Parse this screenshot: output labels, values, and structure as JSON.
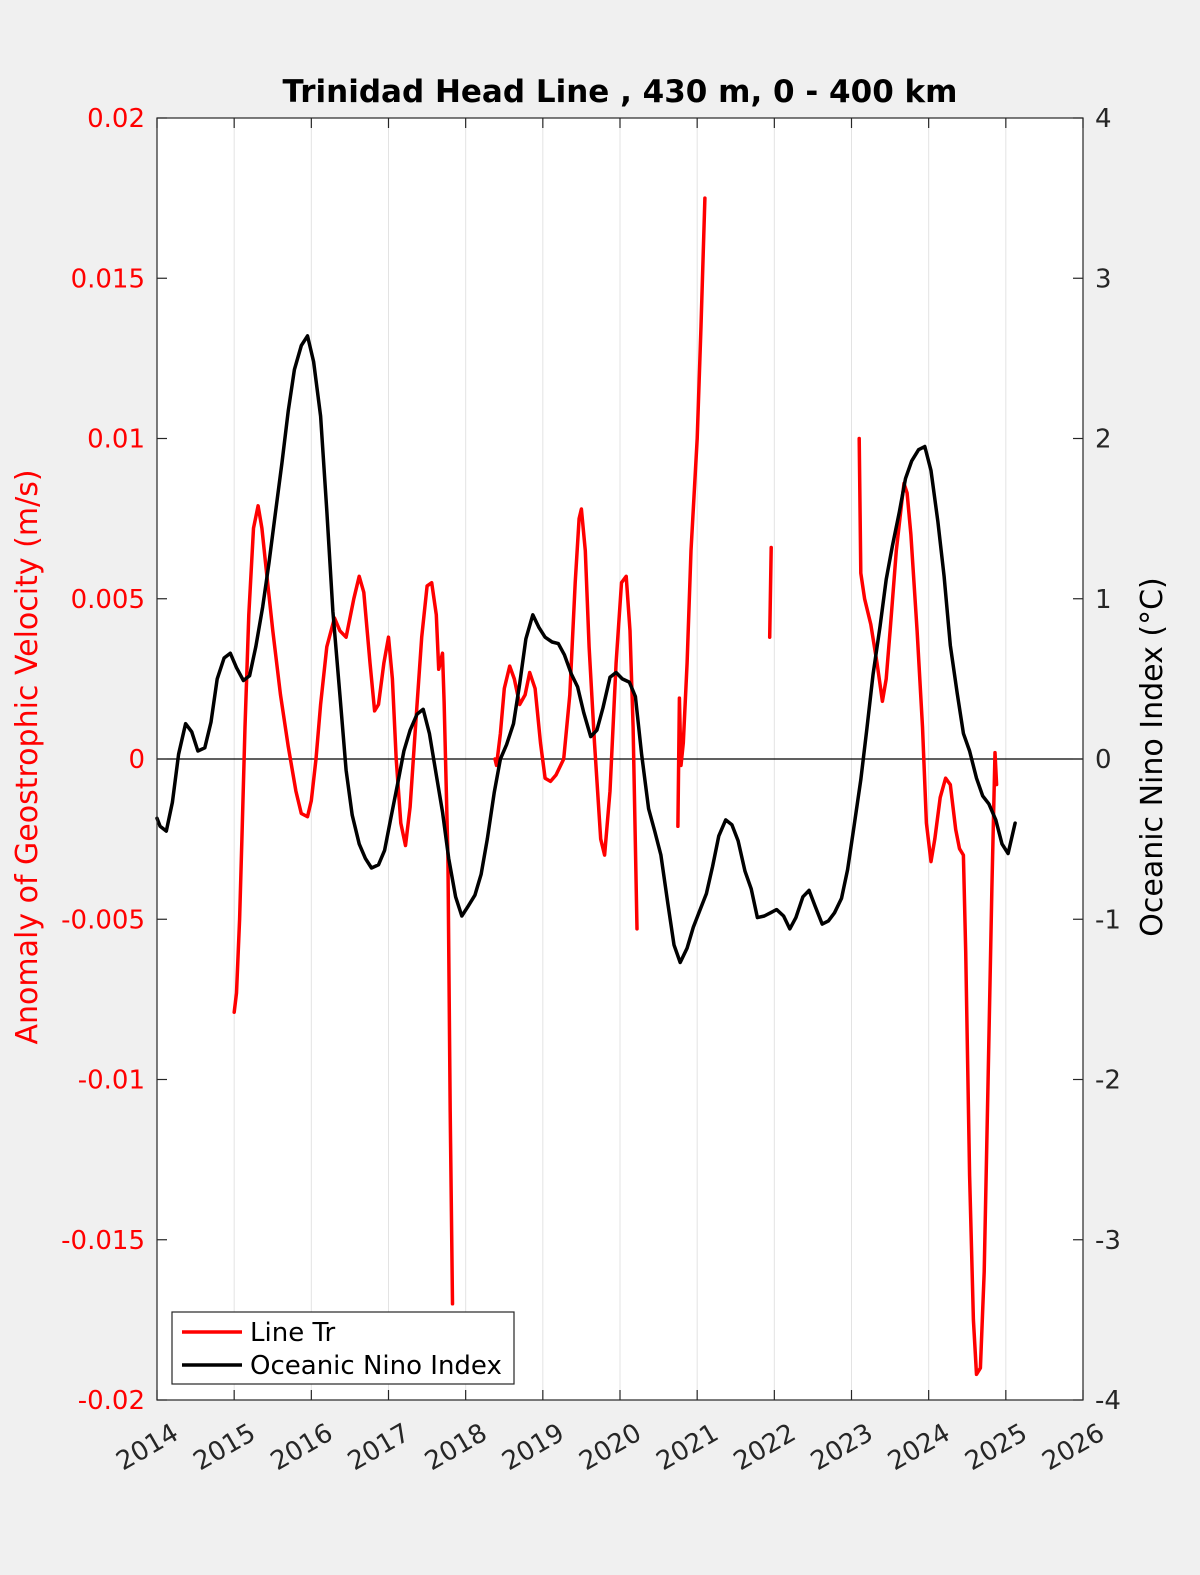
{
  "chart_data": {
    "type": "line",
    "title": "Trinidad Head Line , 430 m, 0 - 400 km",
    "xlabel": "",
    "ylabel_left": "Anomaly of Geostrophic Velocity (m/s)",
    "ylabel_right": "Oceanic Nino Index (°C)",
    "xlim": [
      2014,
      2026
    ],
    "ylim_left": [
      -0.02,
      0.02
    ],
    "ylim_right": [
      -4,
      4
    ],
    "x_ticks": [
      "2014",
      "2015",
      "2016",
      "2017",
      "2018",
      "2019",
      "2020",
      "2021",
      "2022",
      "2023",
      "2024",
      "2025",
      "2026"
    ],
    "y_ticks_left": [
      "-0.02",
      "-0.015",
      "-0.01",
      "-0.005",
      "0",
      "0.005",
      "0.01",
      "0.015",
      "0.02"
    ],
    "y_ticks_right": [
      "-4",
      "-3",
      "-2",
      "-1",
      "0",
      "1",
      "2",
      "3",
      "4"
    ],
    "grid": "vertical",
    "zero_line": true,
    "legend_position": "bottom-left",
    "series": [
      {
        "name": "Line Tr",
        "axis": "left",
        "color": "#ff0000",
        "segments": [
          [
            [
              2015.0,
              -0.0079
            ],
            [
              2015.03,
              -0.0073
            ],
            [
              2015.07,
              -0.005
            ],
            [
              2015.1,
              -0.0025
            ],
            [
              2015.14,
              0.001
            ],
            [
              2015.19,
              0.0045
            ],
            [
              2015.25,
              0.0072
            ],
            [
              2015.31,
              0.0079
            ],
            [
              2015.36,
              0.0072
            ],
            [
              2015.42,
              0.0058
            ],
            [
              2015.5,
              0.004
            ],
            [
              2015.6,
              0.002
            ],
            [
              2015.7,
              0.0004
            ],
            [
              2015.8,
              -0.001
            ],
            [
              2015.87,
              -0.0017
            ],
            [
              2015.95,
              -0.0018
            ],
            [
              2016.0,
              -0.0013
            ],
            [
              2016.06,
              0.0
            ],
            [
              2016.12,
              0.0017
            ],
            [
              2016.2,
              0.0035
            ],
            [
              2016.3,
              0.0044
            ],
            [
              2016.37,
              0.004
            ],
            [
              2016.45,
              0.0038
            ],
            [
              2016.55,
              0.005
            ],
            [
              2016.62,
              0.0057
            ],
            [
              2016.68,
              0.0052
            ],
            [
              2016.76,
              0.003
            ],
            [
              2016.82,
              0.0015
            ],
            [
              2016.87,
              0.0017
            ],
            [
              2016.94,
              0.003
            ],
            [
              2017.0,
              0.0038
            ],
            [
              2017.05,
              0.0025
            ],
            [
              2017.1,
              0.0
            ],
            [
              2017.16,
              -0.002
            ],
            [
              2017.22,
              -0.0027
            ],
            [
              2017.28,
              -0.0015
            ],
            [
              2017.35,
              0.001
            ],
            [
              2017.43,
              0.0038
            ],
            [
              2017.5,
              0.0054
            ],
            [
              2017.56,
              0.0055
            ],
            [
              2017.62,
              0.0045
            ],
            [
              2017.65,
              0.0028
            ],
            [
              2017.7,
              0.0033
            ],
            [
              2017.72,
              0.0018
            ],
            [
              2017.77,
              -0.003
            ],
            [
              2017.8,
              -0.011
            ],
            [
              2017.83,
              -0.017
            ]
          ],
          [
            [
              2018.38,
              0.0
            ],
            [
              2018.4,
              -0.0002
            ],
            [
              2018.45,
              0.0008
            ],
            [
              2018.5,
              0.0022
            ],
            [
              2018.57,
              0.0029
            ],
            [
              2018.63,
              0.0025
            ],
            [
              2018.7,
              0.0017
            ],
            [
              2018.77,
              0.002
            ],
            [
              2018.83,
              0.0027
            ],
            [
              2018.9,
              0.0022
            ],
            [
              2018.97,
              0.0005
            ],
            [
              2019.03,
              -0.0006
            ],
            [
              2019.1,
              -0.0007
            ],
            [
              2019.17,
              -0.0005
            ],
            [
              2019.27,
              0.0
            ],
            [
              2019.35,
              0.002
            ],
            [
              2019.42,
              0.0055
            ],
            [
              2019.47,
              0.0075
            ],
            [
              2019.5,
              0.0078
            ],
            [
              2019.55,
              0.0065
            ],
            [
              2019.6,
              0.0035
            ],
            [
              2019.67,
              0.0005
            ],
            [
              2019.75,
              -0.0025
            ],
            [
              2019.8,
              -0.003
            ],
            [
              2019.87,
              -0.001
            ],
            [
              2019.95,
              0.003
            ],
            [
              2020.02,
              0.0055
            ],
            [
              2020.08,
              0.0057
            ],
            [
              2020.13,
              0.004
            ],
            [
              2020.17,
              0.001
            ],
            [
              2020.22,
              -0.0053
            ]
          ],
          [
            [
              2020.75,
              -0.0021
            ],
            [
              2020.77,
              0.0019
            ],
            [
              2020.79,
              -0.0002
            ],
            [
              2020.82,
              0.0005
            ],
            [
              2020.87,
              0.003
            ],
            [
              2020.92,
              0.0065
            ],
            [
              2021.0,
              0.01
            ],
            [
              2021.05,
              0.0135
            ],
            [
              2021.1,
              0.0175
            ]
          ],
          [
            [
              2021.94,
              0.0038
            ],
            [
              2021.96,
              0.0066
            ]
          ],
          [
            [
              2023.1,
              0.01
            ],
            [
              2023.12,
              0.0058
            ],
            [
              2023.17,
              0.005
            ],
            [
              2023.25,
              0.0042
            ],
            [
              2023.33,
              0.003
            ],
            [
              2023.4,
              0.0018
            ],
            [
              2023.45,
              0.0025
            ],
            [
              2023.5,
              0.004
            ],
            [
              2023.58,
              0.0065
            ],
            [
              2023.65,
              0.008
            ],
            [
              2023.68,
              0.0086
            ],
            [
              2023.72,
              0.0083
            ],
            [
              2023.77,
              0.007
            ],
            [
              2023.85,
              0.004
            ],
            [
              2023.92,
              0.001
            ],
            [
              2023.97,
              -0.002
            ],
            [
              2024.03,
              -0.0032
            ],
            [
              2024.08,
              -0.0025
            ],
            [
              2024.15,
              -0.0012
            ],
            [
              2024.22,
              -0.0006
            ],
            [
              2024.28,
              -0.0008
            ],
            [
              2024.35,
              -0.0022
            ],
            [
              2024.4,
              -0.0028
            ],
            [
              2024.45,
              -0.003
            ],
            [
              2024.48,
              -0.006
            ],
            [
              2024.53,
              -0.013
            ],
            [
              2024.58,
              -0.0175
            ],
            [
              2024.62,
              -0.0192
            ],
            [
              2024.67,
              -0.019
            ],
            [
              2024.72,
              -0.016
            ],
            [
              2024.77,
              -0.01
            ],
            [
              2024.82,
              -0.004
            ],
            [
              2024.86,
              0.0002
            ],
            [
              2024.88,
              -0.0008
            ]
          ]
        ]
      },
      {
        "name": "Oceanic Nino Index",
        "axis": "right",
        "color": "#000000",
        "segments": [
          [
            [
              2014.0,
              -0.37
            ],
            [
              2014.04,
              -0.42
            ],
            [
              2014.12,
              -0.45
            ],
            [
              2014.2,
              -0.27
            ],
            [
              2014.28,
              0.03
            ],
            [
              2014.37,
              0.22
            ],
            [
              2014.45,
              0.17
            ],
            [
              2014.53,
              0.05
            ],
            [
              2014.62,
              0.07
            ],
            [
              2014.7,
              0.23
            ],
            [
              2014.78,
              0.5
            ],
            [
              2014.87,
              0.63
            ],
            [
              2014.95,
              0.66
            ],
            [
              2015.03,
              0.57
            ],
            [
              2015.12,
              0.49
            ],
            [
              2015.2,
              0.52
            ],
            [
              2015.28,
              0.7
            ],
            [
              2015.37,
              0.95
            ],
            [
              2015.45,
              1.22
            ],
            [
              2015.53,
              1.52
            ],
            [
              2015.62,
              1.85
            ],
            [
              2015.7,
              2.17
            ],
            [
              2015.78,
              2.43
            ],
            [
              2015.87,
              2.58
            ],
            [
              2015.95,
              2.64
            ],
            [
              2016.03,
              2.48
            ],
            [
              2016.12,
              2.14
            ],
            [
              2016.2,
              1.55
            ],
            [
              2016.28,
              0.92
            ],
            [
              2016.37,
              0.4
            ],
            [
              2016.45,
              -0.07
            ],
            [
              2016.53,
              -0.35
            ],
            [
              2016.62,
              -0.53
            ],
            [
              2016.7,
              -0.62
            ],
            [
              2016.78,
              -0.68
            ],
            [
              2016.87,
              -0.66
            ],
            [
              2016.95,
              -0.57
            ],
            [
              2017.03,
              -0.37
            ],
            [
              2017.12,
              -0.15
            ],
            [
              2017.2,
              0.05
            ],
            [
              2017.28,
              0.18
            ],
            [
              2017.37,
              0.28
            ],
            [
              2017.45,
              0.31
            ],
            [
              2017.53,
              0.16
            ],
            [
              2017.62,
              -0.1
            ],
            [
              2017.7,
              -0.33
            ],
            [
              2017.78,
              -0.62
            ],
            [
              2017.87,
              -0.86
            ],
            [
              2017.95,
              -0.98
            ],
            [
              2018.03,
              -0.92
            ],
            [
              2018.12,
              -0.85
            ],
            [
              2018.2,
              -0.72
            ],
            [
              2018.28,
              -0.5
            ],
            [
              2018.37,
              -0.21
            ],
            [
              2018.45,
              0.0
            ],
            [
              2018.53,
              0.09
            ],
            [
              2018.62,
              0.22
            ],
            [
              2018.7,
              0.47
            ],
            [
              2018.78,
              0.75
            ],
            [
              2018.87,
              0.9
            ],
            [
              2018.95,
              0.82
            ],
            [
              2019.03,
              0.76
            ],
            [
              2019.12,
              0.73
            ],
            [
              2019.2,
              0.72
            ],
            [
              2019.28,
              0.65
            ],
            [
              2019.37,
              0.53
            ],
            [
              2019.45,
              0.45
            ],
            [
              2019.53,
              0.29
            ],
            [
              2019.62,
              0.14
            ],
            [
              2019.7,
              0.18
            ],
            [
              2019.78,
              0.32
            ],
            [
              2019.87,
              0.51
            ],
            [
              2019.95,
              0.54
            ],
            [
              2020.03,
              0.5
            ],
            [
              2020.12,
              0.48
            ],
            [
              2020.2,
              0.39
            ],
            [
              2020.28,
              0.03
            ],
            [
              2020.37,
              -0.31
            ],
            [
              2020.45,
              -0.45
            ],
            [
              2020.53,
              -0.6
            ],
            [
              2020.62,
              -0.9
            ],
            [
              2020.7,
              -1.16
            ],
            [
              2020.78,
              -1.27
            ],
            [
              2020.87,
              -1.18
            ],
            [
              2020.95,
              -1.05
            ],
            [
              2021.03,
              -0.95
            ],
            [
              2021.12,
              -0.84
            ],
            [
              2021.2,
              -0.67
            ],
            [
              2021.28,
              -0.48
            ],
            [
              2021.37,
              -0.38
            ],
            [
              2021.45,
              -0.41
            ],
            [
              2021.53,
              -0.51
            ],
            [
              2021.62,
              -0.7
            ],
            [
              2021.7,
              -0.81
            ],
            [
              2021.78,
              -0.99
            ],
            [
              2021.87,
              -0.98
            ],
            [
              2021.95,
              -0.96
            ],
            [
              2022.03,
              -0.94
            ],
            [
              2022.12,
              -0.98
            ],
            [
              2022.2,
              -1.06
            ],
            [
              2022.28,
              -0.99
            ],
            [
              2022.37,
              -0.86
            ],
            [
              2022.45,
              -0.82
            ],
            [
              2022.53,
              -0.92
            ],
            [
              2022.62,
              -1.03
            ],
            [
              2022.7,
              -1.01
            ],
            [
              2022.78,
              -0.96
            ],
            [
              2022.87,
              -0.87
            ],
            [
              2022.95,
              -0.69
            ],
            [
              2023.03,
              -0.43
            ],
            [
              2023.12,
              -0.13
            ],
            [
              2023.2,
              0.19
            ],
            [
              2023.28,
              0.53
            ],
            [
              2023.37,
              0.83
            ],
            [
              2023.45,
              1.12
            ],
            [
              2023.53,
              1.33
            ],
            [
              2023.62,
              1.54
            ],
            [
              2023.7,
              1.75
            ],
            [
              2023.78,
              1.86
            ],
            [
              2023.87,
              1.93
            ],
            [
              2023.95,
              1.95
            ],
            [
              2024.03,
              1.8
            ],
            [
              2024.12,
              1.48
            ],
            [
              2024.2,
              1.14
            ],
            [
              2024.28,
              0.71
            ],
            [
              2024.37,
              0.41
            ],
            [
              2024.45,
              0.16
            ],
            [
              2024.53,
              0.05
            ],
            [
              2024.62,
              -0.12
            ],
            [
              2024.7,
              -0.23
            ],
            [
              2024.78,
              -0.28
            ],
            [
              2024.87,
              -0.38
            ],
            [
              2024.95,
              -0.53
            ],
            [
              2025.03,
              -0.59
            ],
            [
              2025.12,
              -0.4
            ]
          ]
        ]
      }
    ]
  }
}
